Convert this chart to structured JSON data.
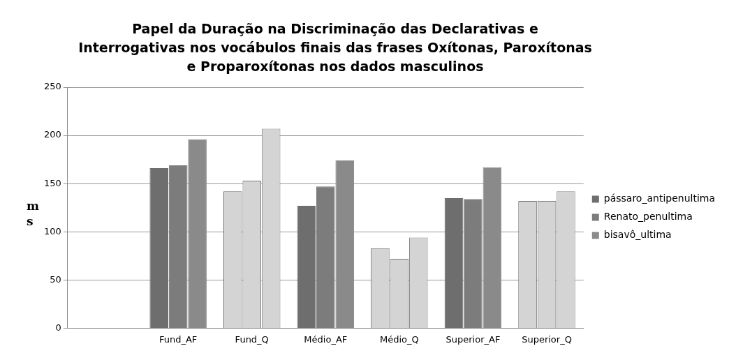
{
  "chart_data": {
    "type": "bar",
    "title": "Papel da Duração na Discriminação  das Declarativas e Interrogativas nos vocábulos finais das frases Oxítonas, Paroxítonas e Proparoxítonas nos dados masculinos",
    "ylabel": "ms",
    "categories": [
      null,
      "Fund_AF",
      "Fund_Q",
      "Médio_AF",
      "Médio_Q",
      "Superior_AF",
      "Superior_Q"
    ],
    "series": [
      {
        "name": "pássaro_antipenultima",
        "color": "#6e6e6e",
        "colors": [
          "#6e6e6e",
          "#6e6e6e",
          "#d4d4d4",
          "#6e6e6e",
          "#d4d4d4",
          "#6e6e6e",
          "#d4d4d4"
        ],
        "values": [
          null,
          166,
          142,
          127,
          83,
          135,
          132
        ]
      },
      {
        "name": "Renato_penultima",
        "color": "#7c7c7c",
        "colors": [
          "#7c7c7c",
          "#7c7c7c",
          "#d4d4d4",
          "#7c7c7c",
          "#d4d4d4",
          "#7c7c7c",
          "#d4d4d4"
        ],
        "values": [
          null,
          169,
          153,
          147,
          72,
          134,
          132
        ]
      },
      {
        "name": "bisavô_ultima",
        "color": "#8a8a8a",
        "colors": [
          "#8a8a8a",
          "#8a8a8a",
          "#d4d4d4",
          "#8a8a8a",
          "#d4d4d4",
          "#8a8a8a",
          "#d4d4d4"
        ],
        "values": [
          null,
          196,
          207,
          174,
          94,
          167,
          142
        ]
      }
    ],
    "ylim": [
      0,
      250
    ],
    "yticks": [
      0,
      50,
      100,
      150,
      200,
      250
    ],
    "grid": "y",
    "legend": "right"
  }
}
